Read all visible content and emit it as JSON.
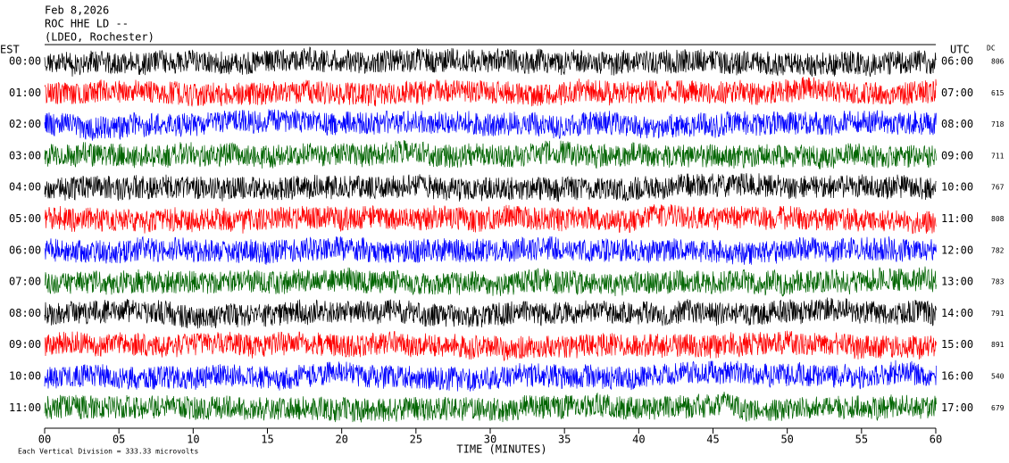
{
  "chart_data": {
    "type": "helicorder",
    "title": "Feb 8,2026",
    "station": "ROC HHE LD --",
    "network": "(LDEO, Rochester)",
    "left_label": "EST",
    "right_label": "UTC",
    "dc_label": "DC",
    "xlabel": "TIME (MINUTES)",
    "footnote": "Each Vertical Division =  333.33 microvolts",
    "colors": [
      "#000000",
      "#ff0000",
      "#0000ff",
      "#006400"
    ],
    "xlim": [
      0,
      60
    ],
    "xticks": [
      {
        "value": 0,
        "label": "00"
      },
      {
        "value": 5,
        "label": "05"
      },
      10,
      15,
      20,
      25,
      30,
      35,
      40,
      45,
      50,
      55,
      60
    ],
    "rows": [
      {
        "est": "00:00",
        "utc": "06:00",
        "dc": 806
      },
      {
        "est": "01:00",
        "utc": "07:00",
        "dc": 615
      },
      {
        "est": "02:00",
        "utc": "08:00",
        "dc": 718
      },
      {
        "est": "03:00",
        "utc": "09:00",
        "dc": 711
      },
      {
        "est": "04:00",
        "utc": "10:00",
        "dc": 767
      },
      {
        "est": "05:00",
        "utc": "11:00",
        "dc": 808
      },
      {
        "est": "06:00",
        "utc": "12:00",
        "dc": 782
      },
      {
        "est": "07:00",
        "utc": "13:00",
        "dc": 783
      },
      {
        "est": "08:00",
        "utc": "14:00",
        "dc": 791
      },
      {
        "est": "09:00",
        "utc": "15:00",
        "dc": 891
      },
      {
        "est": "10:00",
        "utc": "16:00",
        "dc": 540
      },
      {
        "est": "11:00",
        "utc": "17:00",
        "dc": 679
      }
    ]
  }
}
